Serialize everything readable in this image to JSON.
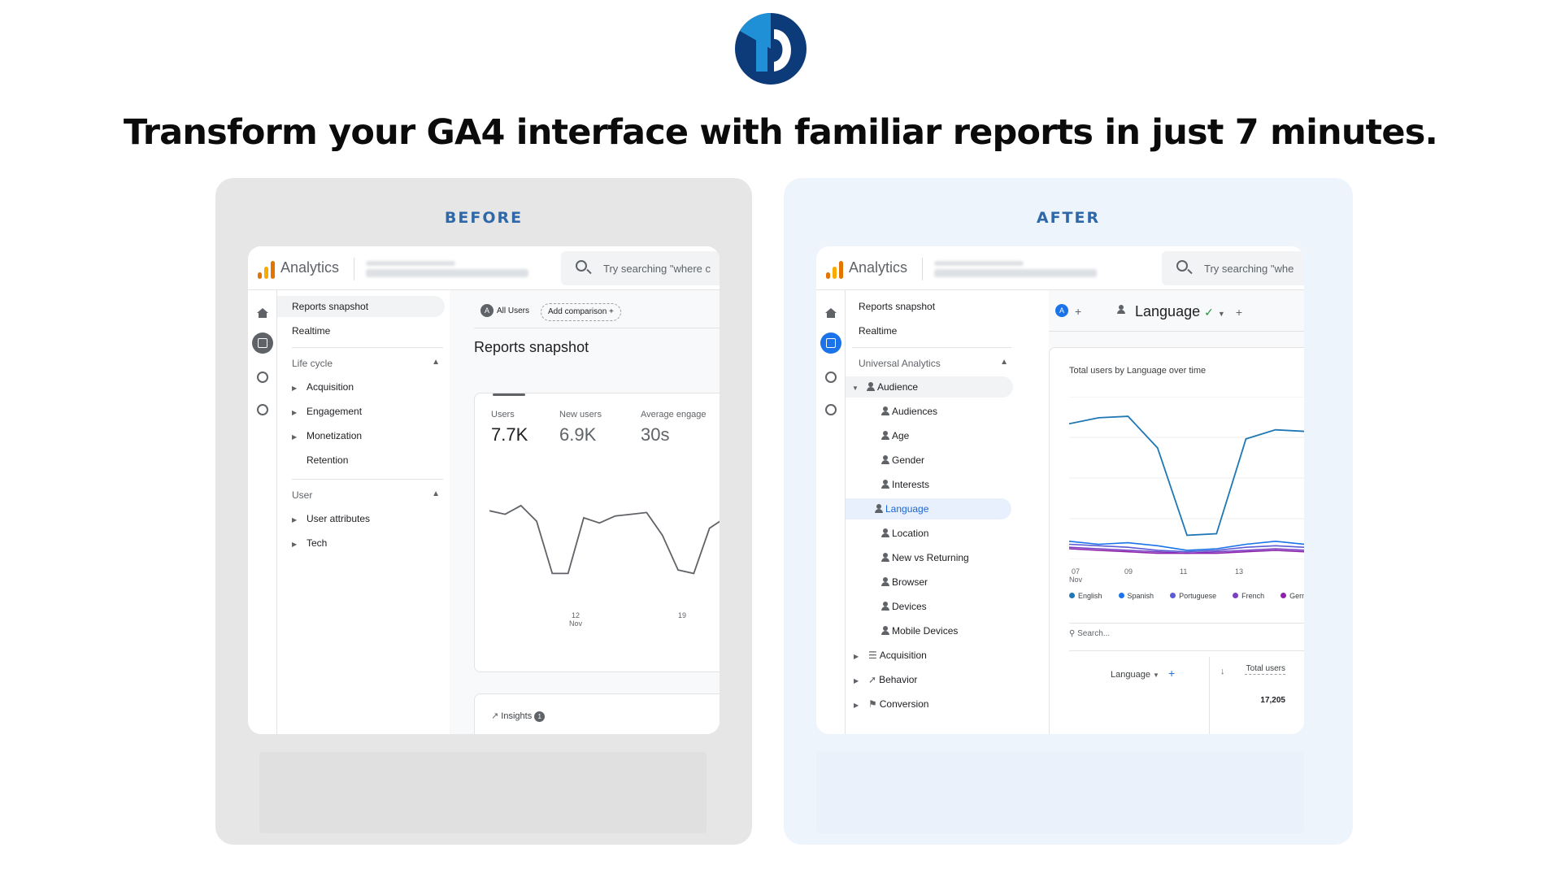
{
  "headline": "Transform your GA4 interface with familiar reports in just 7 minutes.",
  "colors": {
    "brand_dark": "#0d3b7a",
    "brand_light": "#1f8fd6",
    "accent": "#2f68a8",
    "ga_orange": "#f9ab00",
    "ga_dark_orange": "#e37400"
  },
  "before": {
    "label": "BEFORE",
    "app_title": "Analytics",
    "search_placeholder": "Try searching \"where c",
    "nav": {
      "reports_snapshot": "Reports snapshot",
      "realtime": "Realtime",
      "section_lifecycle": "Life cycle",
      "lifecycle_items": [
        "Acquisition",
        "Engagement",
        "Monetization",
        "Retention"
      ],
      "section_user": "User",
      "user_items": [
        "User attributes",
        "Tech"
      ]
    },
    "chips": {
      "all_users": "All Users",
      "all_users_badge": "A",
      "add_comparison": "Add comparison"
    },
    "title": "Reports snapshot",
    "metrics": [
      {
        "label": "Users",
        "value": "7.7K"
      },
      {
        "label": "New users",
        "value": "6.9K"
      },
      {
        "label": "Average engage",
        "value": "30s"
      }
    ],
    "x_ticks": [
      {
        "day": "12",
        "month": "Nov"
      },
      {
        "day": "19",
        "month": ""
      }
    ],
    "insights_label": "Insights",
    "insights_count": "1",
    "chart_data": {
      "type": "line",
      "title": "",
      "series": [
        {
          "values": [
            0.74,
            0.72,
            0.77,
            0.68,
            0.38,
            0.38,
            0.7,
            0.67,
            0.71,
            0.72,
            0.73,
            0.6,
            0.4,
            0.38,
            0.64,
            0.7
          ]
        }
      ],
      "xlabel": "",
      "ylabel": ""
    }
  },
  "after": {
    "label": "AFTER",
    "app_title": "Analytics",
    "search_placeholder": "Try searching \"whe",
    "nav": {
      "reports_snapshot": "Reports snapshot",
      "realtime": "Realtime",
      "section": "Universal Analytics",
      "audience": "Audience",
      "audience_items": [
        "Audiences",
        "Age",
        "Gender",
        "Interests",
        "Language",
        "Location",
        "New vs Returning",
        "Browser",
        "Devices",
        "Mobile Devices"
      ],
      "other_items": [
        "Acquisition",
        "Behavior",
        "Conversion"
      ]
    },
    "chips": {
      "badge": "A",
      "dimension": "Language"
    },
    "chart_title": "Total users by Language over time",
    "x_ticks": [
      {
        "day": "07",
        "month": "Nov"
      },
      {
        "day": "09",
        "month": ""
      },
      {
        "day": "11",
        "month": ""
      },
      {
        "day": "13",
        "month": ""
      }
    ],
    "legend": [
      {
        "name": "English",
        "color": "#1f77b4"
      },
      {
        "name": "Spanish",
        "color": "#1a73e8"
      },
      {
        "name": "Portuguese",
        "color": "#5b5bd6"
      },
      {
        "name": "French",
        "color": "#7b3fc4"
      },
      {
        "name": "Germ",
        "color": "#8e24aa"
      }
    ],
    "table": {
      "search_placeholder": "Search...",
      "col_dimension": "Language",
      "col_metric": "Total users",
      "total": "17,205"
    },
    "chart_data": {
      "type": "line",
      "title": "Total users by Language over time",
      "x": [
        "07",
        "",
        "09",
        "",
        "11",
        "",
        "13",
        "",
        ""
      ],
      "series": [
        {
          "name": "English",
          "values": [
            0.82,
            0.86,
            0.87,
            0.66,
            0.08,
            0.09,
            0.72,
            0.78,
            0.77
          ]
        },
        {
          "name": "Spanish",
          "values": [
            0.04,
            0.02,
            0.03,
            0.01,
            -0.02,
            -0.01,
            0.02,
            0.04,
            0.02
          ]
        },
        {
          "name": "Portuguese",
          "values": [
            0.02,
            0.01,
            0.0,
            -0.02,
            -0.03,
            -0.02,
            0.0,
            0.01,
            0.0
          ]
        },
        {
          "name": "French",
          "values": [
            0.0,
            -0.01,
            -0.02,
            -0.03,
            -0.04,
            -0.03,
            -0.02,
            -0.01,
            -0.02
          ]
        },
        {
          "name": "Germ",
          "values": [
            -0.01,
            -0.02,
            -0.03,
            -0.04,
            -0.04,
            -0.04,
            -0.03,
            -0.02,
            -0.03
          ]
        }
      ]
    }
  }
}
